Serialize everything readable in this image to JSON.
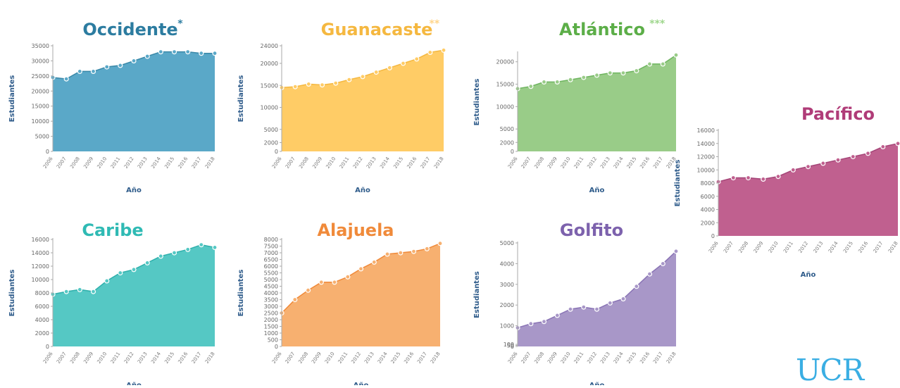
{
  "logo_text": "UCR",
  "chart_data": [
    {
      "id": "occidente",
      "type": "area",
      "title": "Occidente",
      "title_mark": "*",
      "color": "#5aa8c8",
      "stroke": "#3a88a8",
      "title_color": "#2c7ca0",
      "mark_color": "#2c7ca0",
      "xlabel": "Año",
      "ylabel": "Estudiantes",
      "ylim": [
        0,
        35000
      ],
      "yticks": [
        0,
        5000,
        10000,
        15000,
        20000,
        25000,
        30000,
        35000
      ],
      "x": [
        "2006",
        "2007",
        "2008",
        "2009",
        "2010",
        "2011",
        "2012",
        "2013",
        "2014",
        "2015",
        "2016",
        "2017",
        "2018"
      ],
      "values": [
        24500,
        24000,
        26500,
        26500,
        28000,
        28500,
        30000,
        31500,
        33000,
        33000,
        33000,
        32500,
        32500
      ]
    },
    {
      "id": "guanacaste",
      "type": "area",
      "title": "Guanacaste",
      "title_mark": "**",
      "color": "#ffcc66",
      "stroke": "#f5b840",
      "title_color": "#f5b840",
      "mark_color": "#ffd58a",
      "xlabel": "Año",
      "ylabel": "Estudiantes",
      "ylim": [
        0,
        24000
      ],
      "yticks": [
        0,
        2000,
        5000,
        10000,
        15000,
        20000,
        24000
      ],
      "x": [
        "2006",
        "2007",
        "2008",
        "2009",
        "2010",
        "2011",
        "2012",
        "2013",
        "2014",
        "2015",
        "2016",
        "2017",
        "2018"
      ],
      "values": [
        14500,
        14700,
        15300,
        15100,
        15500,
        16300,
        17000,
        18000,
        19000,
        20000,
        21000,
        22500,
        23000
      ]
    },
    {
      "id": "atlantico",
      "type": "area",
      "title": "Atlántico",
      "title_mark": "***",
      "color": "#99cc88",
      "stroke": "#6fb560",
      "title_color": "#5cae48",
      "mark_color": "#9ed68c",
      "xlabel": "Año",
      "ylabel": "Estudiantes",
      "ylim": [
        0,
        22000
      ],
      "yticks": [
        0,
        2000,
        5000,
        10000,
        15000,
        20000
      ],
      "x": [
        "2006",
        "2007",
        "2008",
        "2009",
        "2010",
        "2011",
        "2012",
        "2013",
        "2014",
        "2015",
        "2016",
        "2017",
        "2018"
      ],
      "values": [
        14000,
        14500,
        15500,
        15500,
        16000,
        16500,
        17000,
        17500,
        17500,
        18000,
        19500,
        19500,
        21500
      ]
    },
    {
      "id": "pacifico",
      "type": "area",
      "title": "Pacífico",
      "title_mark": "",
      "color": "#c0608f",
      "stroke": "#a54578",
      "title_color": "#b03c78",
      "mark_color": "#b03c78",
      "xlabel": "Año",
      "ylabel": "Estudiantes",
      "ylim": [
        0,
        16000
      ],
      "yticks": [
        0,
        2000,
        4000,
        6000,
        8000,
        10000,
        12000,
        14000,
        16000
      ],
      "x": [
        "2006",
        "2007",
        "2008",
        "2009",
        "2010",
        "2011",
        "2012",
        "2013",
        "2014",
        "2015",
        "2016",
        "2017",
        "2018"
      ],
      "values": [
        8200,
        8800,
        8800,
        8600,
        9000,
        10000,
        10500,
        11000,
        11500,
        12000,
        12500,
        13500,
        14000
      ]
    },
    {
      "id": "caribe",
      "type": "area",
      "title": "Caribe",
      "title_mark": "",
      "color": "#55c8c4",
      "stroke": "#2fb0ac",
      "title_color": "#2fbab4",
      "mark_color": "#2fbab4",
      "xlabel": "Año",
      "ylabel": "Estudiantes",
      "ylim": [
        0,
        16000
      ],
      "yticks": [
        0,
        2000,
        4000,
        6000,
        8000,
        10000,
        12000,
        14000,
        16000
      ],
      "x": [
        "2006",
        "2007",
        "2008",
        "2009",
        "2010",
        "2011",
        "2012",
        "2013",
        "2014",
        "2015",
        "2016",
        "2017",
        "2018"
      ],
      "values": [
        7800,
        8200,
        8500,
        8200,
        9800,
        11000,
        11500,
        12500,
        13500,
        14000,
        14500,
        15200,
        14800
      ]
    },
    {
      "id": "alajuela",
      "type": "area",
      "title": "Alajuela",
      "title_mark": "",
      "color": "#f7b070",
      "stroke": "#f08a3a",
      "title_color": "#f08a3a",
      "mark_color": "#f08a3a",
      "xlabel": "Año",
      "ylabel": "Estudiantes",
      "ylim": [
        0,
        8000
      ],
      "yticks": [
        0,
        500,
        1000,
        1500,
        2000,
        2500,
        3000,
        3500,
        4000,
        4500,
        5000,
        5500,
        6000,
        6500,
        7000,
        7500,
        8000
      ],
      "x": [
        "2006",
        "2007",
        "2008",
        "2009",
        "2010",
        "2011",
        "2012",
        "2013",
        "2014",
        "2015",
        "2016",
        "2017",
        "2018"
      ],
      "values": [
        2500,
        3500,
        4200,
        4800,
        4800,
        5200,
        5800,
        6300,
        6900,
        7000,
        7100,
        7300,
        7700
      ]
    },
    {
      "id": "golfito",
      "type": "area",
      "title": "Golfito",
      "title_mark": "",
      "color": "#a897c8",
      "stroke": "#8a74b5",
      "title_color": "#7d62ad",
      "mark_color": "#7d62ad",
      "xlabel": "Año",
      "ylabel": "Estudiantes",
      "ylim": [
        0,
        5000
      ],
      "yticks": [
        0,
        50,
        100,
        1000,
        2000,
        3000,
        4000,
        5000
      ],
      "x": [
        "2006",
        "2007",
        "2008",
        "2009",
        "2010",
        "2011",
        "2012",
        "2013",
        "2014",
        "2015",
        "2016",
        "2017",
        "2018"
      ],
      "values": [
        900,
        1100,
        1200,
        1500,
        1800,
        1900,
        1800,
        2100,
        2300,
        2900,
        3500,
        4000,
        4600
      ]
    }
  ]
}
